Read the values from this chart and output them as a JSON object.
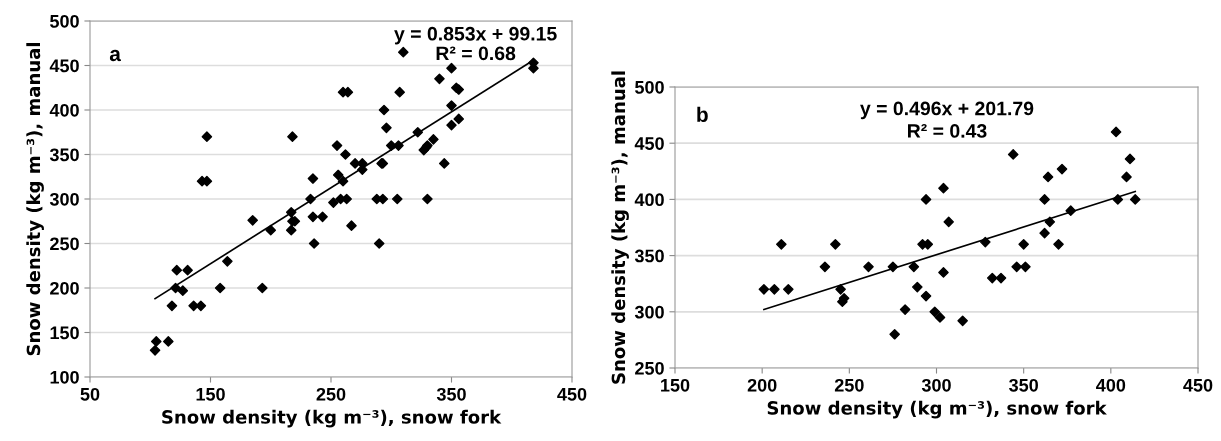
{
  "chart_data": [
    {
      "type": "scatter",
      "title": "a",
      "xlabel": "Snow density (kg m⁻³), snow fork",
      "ylabel": "Snow density (kg m⁻³), manual",
      "annotations": [
        "y = 0.853x + 99.15",
        "R² = 0.68"
      ],
      "xlim": [
        50,
        450
      ],
      "xticks": [
        50,
        150,
        250,
        350,
        450
      ],
      "ylim": [
        100,
        500
      ],
      "yticks": [
        100,
        150,
        200,
        250,
        300,
        350,
        400,
        450,
        500
      ],
      "grid": "y",
      "series": [
        {
          "color": "#000000",
          "marker": "diamond",
          "x": [
            104,
            105,
            115,
            118,
            122,
            121,
            127,
            131,
            136,
            142,
            143,
            147,
            147,
            158,
            164,
            185,
            193,
            200,
            217,
            217,
            218,
            218,
            220,
            233,
            235,
            235,
            236,
            243,
            252,
            255,
            256,
            258,
            260,
            262,
            260,
            264,
            263,
            267,
            270,
            276,
            276,
            288,
            290,
            292,
            293,
            293,
            294,
            296,
            300,
            305,
            306,
            307,
            310,
            322,
            327,
            329,
            330,
            330,
            335,
            340,
            344,
            350,
            350,
            350,
            354,
            356,
            356,
            418,
            418
          ],
          "values": [
            130,
            140,
            140,
            180,
            220,
            200,
            197,
            220,
            180,
            180,
            320,
            320,
            370,
            200,
            230,
            276,
            200,
            265,
            265,
            285,
            370,
            275,
            275,
            300,
            323,
            280,
            250,
            280,
            296,
            360,
            327,
            300,
            320,
            350,
            420,
            420,
            300,
            270,
            340,
            340,
            333,
            300,
            250,
            340,
            340,
            300,
            400,
            380,
            360,
            300,
            360,
            420,
            465,
            375,
            355,
            358,
            360,
            300,
            367,
            435,
            340,
            447,
            405,
            383,
            425,
            423,
            390,
            453,
            447
          ]
        },
        {
          "type": "line",
          "color": "#000000",
          "marker": "none",
          "x": [
            104,
            418
          ],
          "values": [
            188,
            456
          ]
        }
      ]
    },
    {
      "type": "scatter",
      "title": "b",
      "xlabel": "Snow density (kg m⁻³), snow fork",
      "ylabel": "Snow density (kg m⁻³), manual",
      "annotations": [
        "y = 0.496x + 201.79",
        "R² = 0.43"
      ],
      "xlim": [
        150,
        450
      ],
      "xticks": [
        150,
        200,
        250,
        300,
        350,
        400,
        450
      ],
      "ylim": [
        250,
        500
      ],
      "yticks": [
        250,
        300,
        350,
        400,
        450,
        500
      ],
      "grid": "y",
      "series": [
        {
          "color": "#000000",
          "marker": "diamond",
          "x": [
            201,
            207,
            211,
            215,
            236,
            242,
            245,
            246,
            247,
            261,
            275,
            276,
            282,
            287,
            289,
            292,
            294,
            295,
            294,
            299,
            302,
            304,
            304,
            307,
            315,
            328,
            332,
            337,
            344,
            346,
            350,
            351,
            362,
            362,
            364,
            365,
            370,
            372,
            377,
            403,
            404,
            409,
            411,
            414
          ],
          "values": [
            320,
            320,
            360,
            320,
            340,
            360,
            320,
            309,
            312,
            340,
            340,
            280,
            302,
            340,
            322,
            360,
            314,
            360,
            400,
            300,
            295,
            410,
            335,
            380,
            292,
            362,
            330,
            330,
            440,
            340,
            360,
            340,
            370,
            400,
            420,
            380,
            360,
            427,
            390,
            460,
            400,
            420,
            436,
            400
          ]
        },
        {
          "type": "line",
          "color": "#000000",
          "marker": "none",
          "x": [
            201,
            414
          ],
          "values": [
            302,
            407
          ]
        }
      ]
    }
  ]
}
